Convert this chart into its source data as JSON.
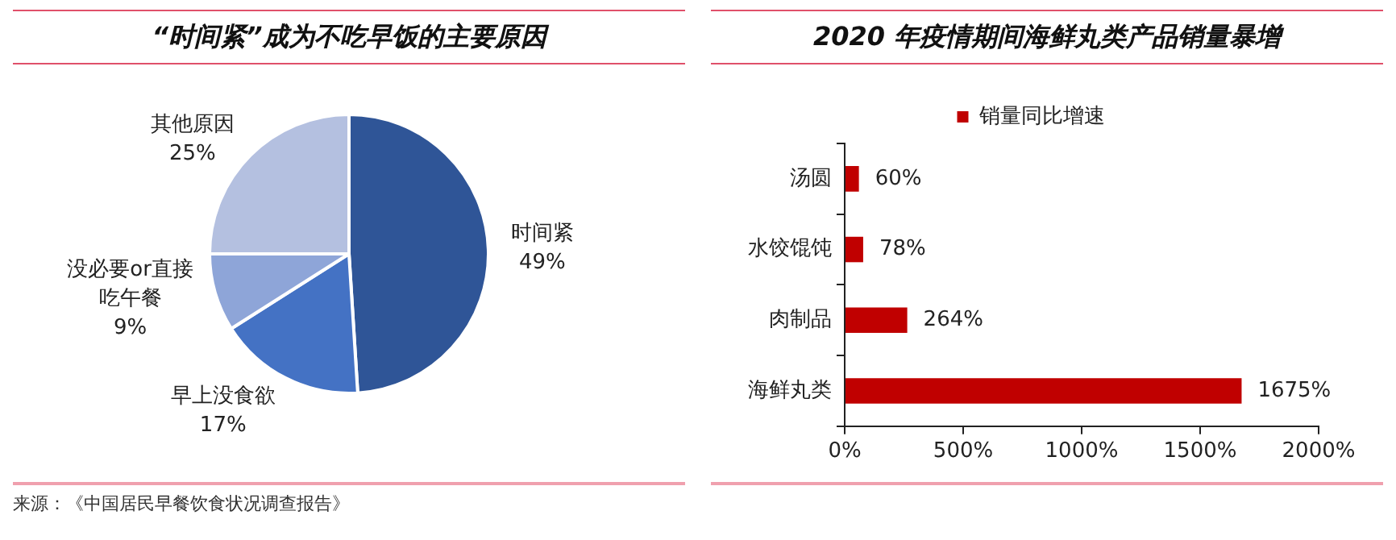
{
  "chart_data": [
    {
      "type": "pie",
      "title": "“时间紧”成为不吃早饭的主要原因",
      "categories": [
        "时间紧",
        "早上没食欲",
        "没必要or直接吃午餐",
        "其他原因"
      ],
      "values": [
        49,
        17,
        9,
        25
      ],
      "colors": [
        "#2f5597",
        "#4472c4",
        "#8ea5d8",
        "#b4c0e0"
      ],
      "value_labels": [
        "49%",
        "17%",
        "9%",
        "25%"
      ],
      "legend": false,
      "annotations": [
        "来源：《中国居民早餐饮食状况调查报告》"
      ]
    },
    {
      "type": "bar",
      "orientation": "horizontal",
      "title": "2020 年疫情期间海鲜丸类产品销量暴增",
      "categories": [
        "汤圆",
        "水饺馄饨",
        "肉制品",
        "海鲜丸类"
      ],
      "series": [
        {
          "name": "销量同比增速",
          "color": "#c00000",
          "values": [
            60,
            78,
            264,
            1675
          ],
          "value_labels": [
            "60%",
            "78%",
            "264%",
            "1675%"
          ]
        }
      ],
      "xlim": [
        0,
        2000
      ],
      "xticks": [
        {
          "value": 0,
          "label": "0%"
        },
        {
          "value": 500,
          "label": "500%"
        },
        {
          "value": 1000,
          "label": "1000%"
        },
        {
          "value": 1500,
          "label": "1500%"
        },
        {
          "value": 2000,
          "label": "2000%"
        }
      ],
      "grid": false,
      "legend": "top"
    }
  ]
}
